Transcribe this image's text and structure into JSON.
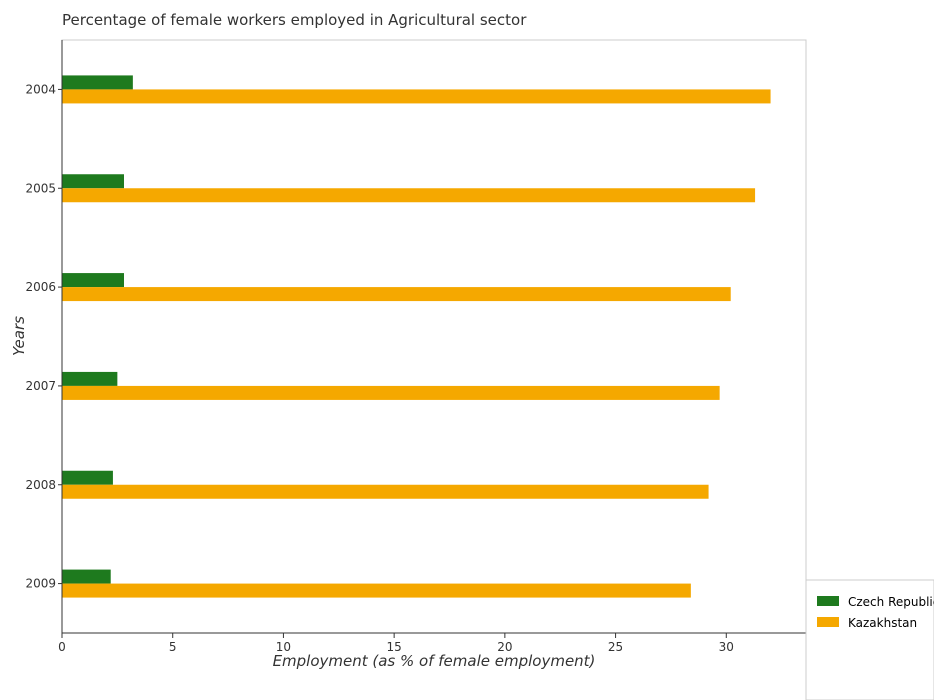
{
  "chart_data": {
    "type": "bar",
    "orientation": "horizontal",
    "title": "Percentage of female workers employed in Agricultural sector",
    "xlabel": "Employment (as % of female employment)",
    "ylabel": "Years",
    "categories": [
      "2004",
      "2005",
      "2006",
      "2007",
      "2008",
      "2009"
    ],
    "series": [
      {
        "name": "Czech Republic",
        "color": "#1e7a1e",
        "values": [
          3.2,
          2.8,
          2.8,
          2.5,
          2.3,
          2.2
        ]
      },
      {
        "name": "Kazakhstan",
        "color": "#f5a800",
        "values": [
          32.0,
          31.3,
          30.2,
          29.7,
          29.2,
          28.4
        ]
      }
    ],
    "xlim": [
      0,
      33.6
    ],
    "xticks": [
      0,
      5,
      10,
      15,
      20,
      25,
      30
    ],
    "grid": false,
    "legend_position": "bottom-right"
  }
}
